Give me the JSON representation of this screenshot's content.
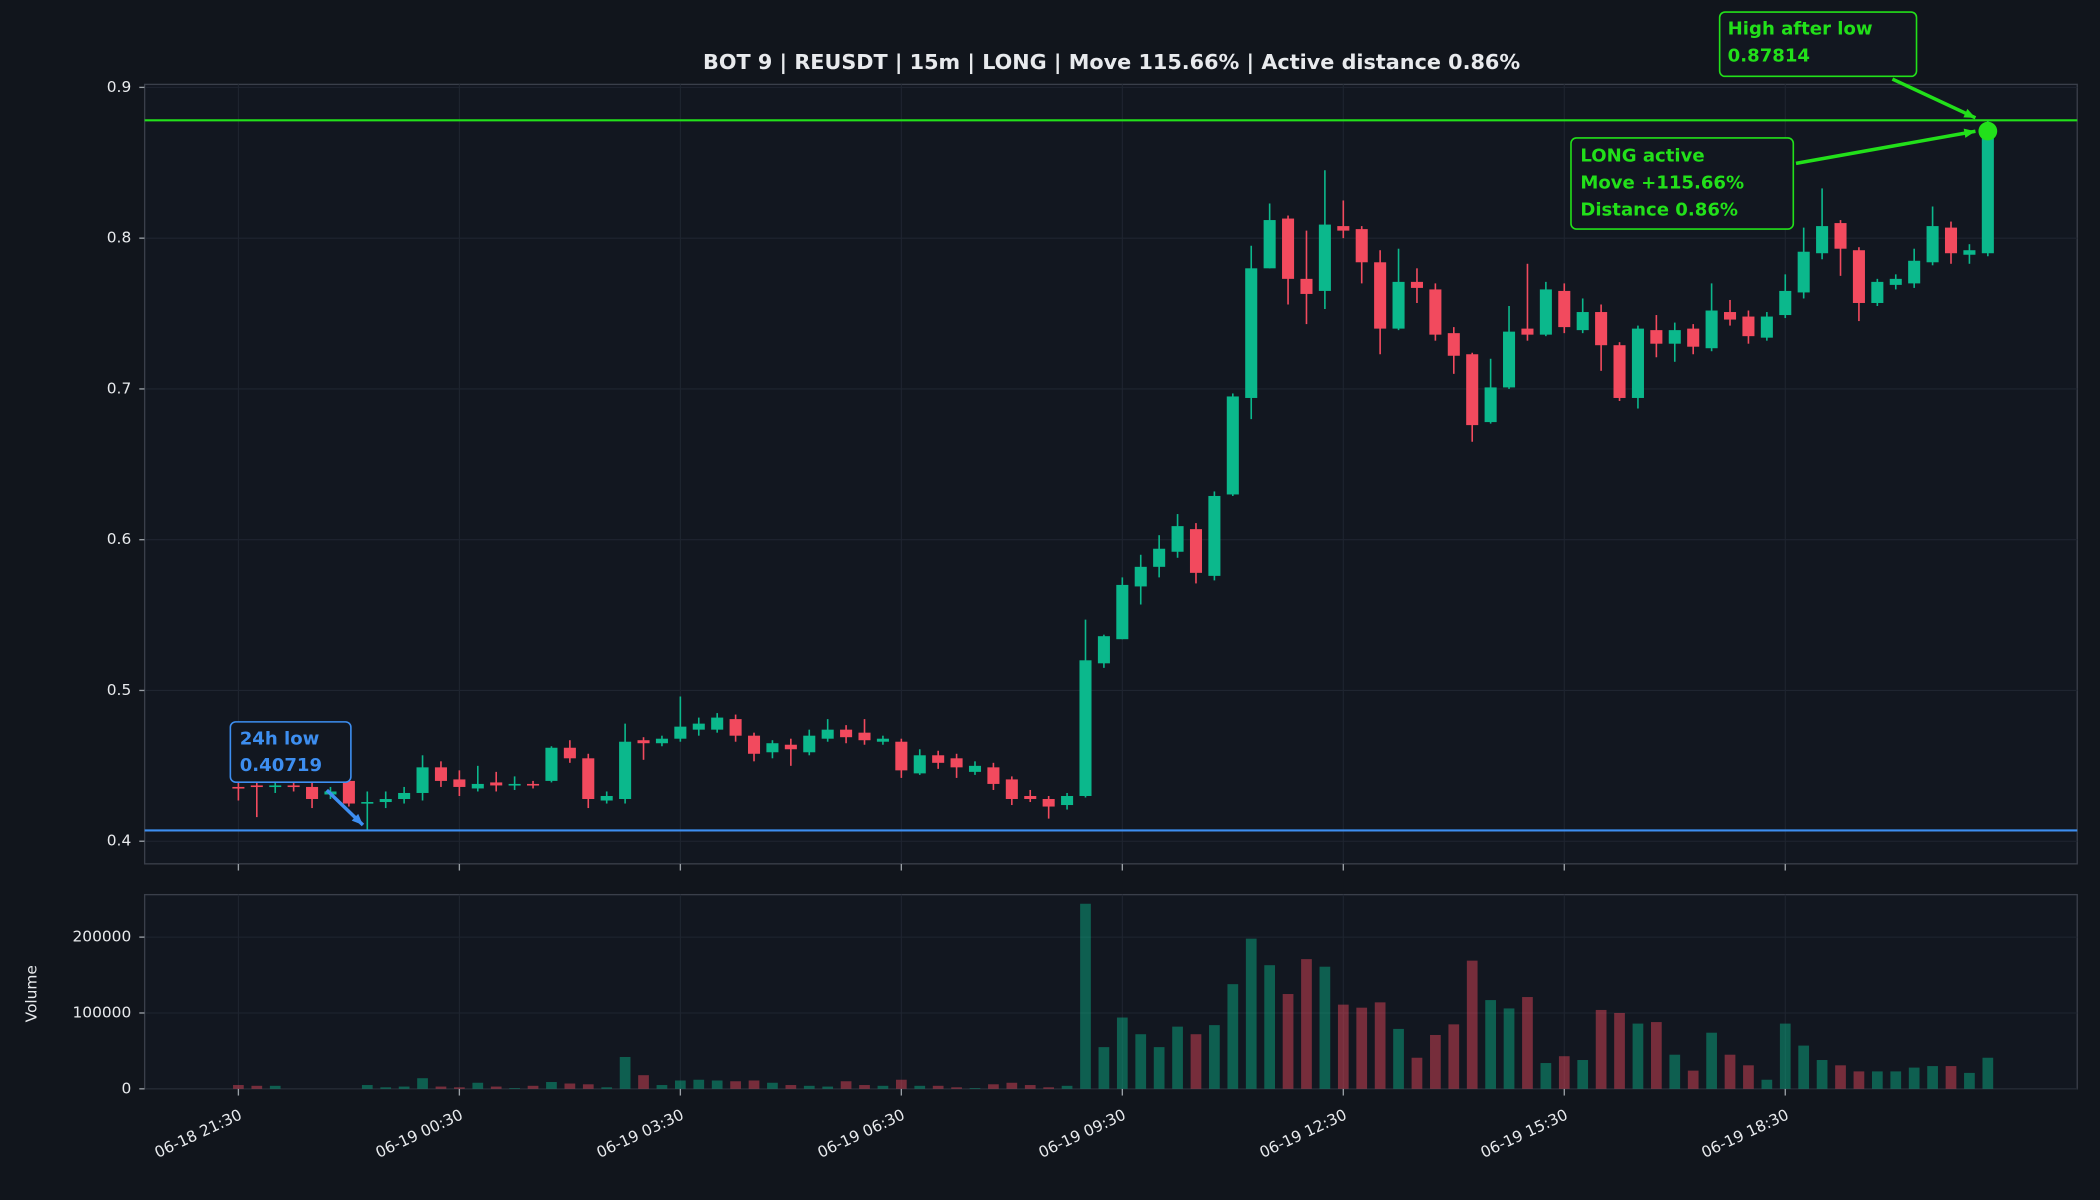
{
  "chart_data": {
    "type": "candlestick",
    "title": "BOT 9 | REUSDT | 15m | LONG | Move 115.66% | Active distance 0.86%",
    "x": [
      "06-18 21:30",
      "06-18 21:45",
      "06-18 22:00",
      "06-18 22:15",
      "06-18 22:30",
      "06-18 22:45",
      "06-18 23:00",
      "06-18 23:15",
      "06-18 23:30",
      "06-18 23:45",
      "06-19 00:00",
      "06-19 00:15",
      "06-19 00:30",
      "06-19 00:45",
      "06-19 01:00",
      "06-19 01:15",
      "06-19 01:30",
      "06-19 01:45",
      "06-19 02:00",
      "06-19 02:15",
      "06-19 02:30",
      "06-19 02:45",
      "06-19 03:00",
      "06-19 03:15",
      "06-19 03:30",
      "06-19 03:45",
      "06-19 04:00",
      "06-19 04:15",
      "06-19 04:30",
      "06-19 04:45",
      "06-19 05:00",
      "06-19 05:15",
      "06-19 05:30",
      "06-19 05:45",
      "06-19 06:00",
      "06-19 06:15",
      "06-19 06:30",
      "06-19 06:45",
      "06-19 07:00",
      "06-19 07:15",
      "06-19 07:30",
      "06-19 07:45",
      "06-19 08:00",
      "06-19 08:15",
      "06-19 08:30",
      "06-19 08:45",
      "06-19 09:00",
      "06-19 09:15",
      "06-19 09:30",
      "06-19 09:45",
      "06-19 10:00",
      "06-19 10:15",
      "06-19 10:30",
      "06-19 10:45",
      "06-19 11:00",
      "06-19 11:15",
      "06-19 11:30",
      "06-19 11:45",
      "06-19 12:00",
      "06-19 12:15",
      "06-19 12:30",
      "06-19 12:45",
      "06-19 13:00",
      "06-19 13:15",
      "06-19 13:30",
      "06-19 13:45",
      "06-19 14:00",
      "06-19 14:15",
      "06-19 14:30",
      "06-19 14:45",
      "06-19 15:00",
      "06-19 15:15",
      "06-19 15:30",
      "06-19 15:45",
      "06-19 16:00",
      "06-19 16:15",
      "06-19 16:30",
      "06-19 16:45",
      "06-19 17:00",
      "06-19 17:15",
      "06-19 17:30",
      "06-19 17:45",
      "06-19 18:00",
      "06-19 18:15",
      "06-19 18:30",
      "06-19 18:45",
      "06-19 19:00",
      "06-19 19:15",
      "06-19 19:30",
      "06-19 19:45",
      "06-19 20:00",
      "06-19 20:15",
      "06-19 20:30",
      "06-19 20:45",
      "06-19 21:00",
      "06-19 21:15"
    ],
    "open": [
      0.436,
      0.437,
      0.436,
      0.437,
      0.436,
      0.431,
      0.44,
      0.425,
      0.426,
      0.428,
      0.432,
      0.449,
      0.441,
      0.435,
      0.439,
      0.437,
      0.438,
      0.44,
      0.462,
      0.455,
      0.427,
      0.428,
      0.467,
      0.465,
      0.468,
      0.474,
      0.474,
      0.481,
      0.47,
      0.459,
      0.464,
      0.459,
      0.468,
      0.474,
      0.472,
      0.466,
      0.466,
      0.445,
      0.457,
      0.455,
      0.446,
      0.449,
      0.441,
      0.43,
      0.428,
      0.424,
      0.43,
      0.518,
      0.534,
      0.569,
      0.582,
      0.592,
      0.607,
      0.576,
      0.63,
      0.694,
      0.78,
      0.813,
      0.773,
      0.765,
      0.808,
      0.806,
      0.784,
      0.74,
      0.771,
      0.766,
      0.737,
      0.723,
      0.678,
      0.701,
      0.74,
      0.736,
      0.765,
      0.739,
      0.751,
      0.729,
      0.694,
      0.739,
      0.73,
      0.74,
      0.727,
      0.751,
      0.748,
      0.734,
      0.749,
      0.764,
      0.79,
      0.81,
      0.792,
      0.757,
      0.769,
      0.77,
      0.784,
      0.807,
      0.789,
      0.79
    ],
    "high": [
      0.44,
      0.44,
      0.44,
      0.441,
      0.439,
      0.436,
      0.441,
      0.433,
      0.433,
      0.436,
      0.457,
      0.453,
      0.447,
      0.45,
      0.446,
      0.443,
      0.44,
      0.463,
      0.467,
      0.458,
      0.433,
      0.478,
      0.469,
      0.47,
      0.496,
      0.482,
      0.485,
      0.484,
      0.472,
      0.467,
      0.468,
      0.474,
      0.481,
      0.477,
      0.481,
      0.47,
      0.468,
      0.461,
      0.46,
      0.458,
      0.453,
      0.452,
      0.443,
      0.434,
      0.43,
      0.432,
      0.547,
      0.537,
      0.575,
      0.59,
      0.603,
      0.617,
      0.611,
      0.632,
      0.697,
      0.795,
      0.823,
      0.815,
      0.805,
      0.845,
      0.825,
      0.808,
      0.792,
      0.793,
      0.78,
      0.77,
      0.741,
      0.724,
      0.72,
      0.755,
      0.783,
      0.771,
      0.77,
      0.76,
      0.756,
      0.731,
      0.742,
      0.749,
      0.744,
      0.743,
      0.77,
      0.759,
      0.752,
      0.751,
      0.776,
      0.807,
      0.833,
      0.812,
      0.794,
      0.773,
      0.776,
      0.793,
      0.821,
      0.811,
      0.796,
      0.87814
    ],
    "low": [
      0.427,
      0.416,
      0.432,
      0.433,
      0.422,
      0.428,
      0.423,
      0.40719,
      0.422,
      0.425,
      0.427,
      0.436,
      0.43,
      0.433,
      0.433,
      0.434,
      0.435,
      0.439,
      0.452,
      0.422,
      0.425,
      0.425,
      0.454,
      0.463,
      0.466,
      0.47,
      0.472,
      0.466,
      0.453,
      0.455,
      0.45,
      0.457,
      0.466,
      0.465,
      0.464,
      0.464,
      0.442,
      0.444,
      0.448,
      0.442,
      0.444,
      0.434,
      0.424,
      0.426,
      0.415,
      0.421,
      0.429,
      0.515,
      0.534,
      0.557,
      0.575,
      0.588,
      0.571,
      0.573,
      0.629,
      0.68,
      0.78,
      0.756,
      0.743,
      0.753,
      0.8,
      0.77,
      0.723,
      0.739,
      0.757,
      0.732,
      0.71,
      0.665,
      0.677,
      0.7,
      0.732,
      0.735,
      0.737,
      0.737,
      0.712,
      0.692,
      0.687,
      0.721,
      0.718,
      0.723,
      0.725,
      0.742,
      0.73,
      0.732,
      0.747,
      0.76,
      0.786,
      0.775,
      0.745,
      0.755,
      0.766,
      0.767,
      0.782,
      0.783,
      0.783,
      0.788
    ],
    "close": [
      0.435,
      0.436,
      0.437,
      0.436,
      0.428,
      0.433,
      0.425,
      0.426,
      0.428,
      0.432,
      0.449,
      0.44,
      0.436,
      0.438,
      0.437,
      0.438,
      0.437,
      0.462,
      0.455,
      0.428,
      0.43,
      0.466,
      0.465,
      0.468,
      0.476,
      0.478,
      0.482,
      0.47,
      0.458,
      0.465,
      0.461,
      0.47,
      0.474,
      0.469,
      0.467,
      0.468,
      0.447,
      0.457,
      0.452,
      0.449,
      0.45,
      0.438,
      0.428,
      0.428,
      0.423,
      0.43,
      0.52,
      0.536,
      0.57,
      0.582,
      0.594,
      0.609,
      0.578,
      0.629,
      0.695,
      0.78,
      0.812,
      0.773,
      0.763,
      0.809,
      0.805,
      0.784,
      0.74,
      0.771,
      0.767,
      0.736,
      0.722,
      0.676,
      0.701,
      0.738,
      0.736,
      0.766,
      0.741,
      0.751,
      0.729,
      0.694,
      0.74,
      0.73,
      0.739,
      0.728,
      0.752,
      0.746,
      0.735,
      0.748,
      0.765,
      0.791,
      0.808,
      0.793,
      0.757,
      0.771,
      0.773,
      0.785,
      0.808,
      0.79,
      0.792,
      0.871
    ],
    "volume": [
      5000,
      4000,
      4000,
      0,
      0,
      0,
      0,
      5000,
      2000,
      3000,
      14000,
      3000,
      2000,
      8000,
      3000,
      1000,
      4000,
      9000,
      7000,
      6000,
      2000,
      42000,
      18000,
      5000,
      11000,
      12000,
      11000,
      10000,
      11000,
      8000,
      5000,
      4000,
      3000,
      10000,
      5000,
      4000,
      12000,
      4000,
      4000,
      2000,
      1000,
      6000,
      8000,
      5000,
      2000,
      4000,
      244000,
      55000,
      94000,
      72000,
      55000,
      82000,
      72000,
      84000,
      138000,
      198000,
      163000,
      125000,
      171000,
      161000,
      111000,
      107000,
      114000,
      79000,
      41000,
      71000,
      85000,
      169000,
      117000,
      106000,
      121000,
      34000,
      43000,
      38000,
      104000,
      100000,
      86000,
      88000,
      45000,
      24000,
      74000,
      45000,
      31000,
      12000,
      86000,
      57000,
      38000,
      31000,
      23000,
      23000,
      23000,
      28000,
      30000,
      30000,
      21000,
      41000
    ],
    "up_color": "#0bb88c",
    "down_color": "#f24a5e",
    "ylim": [
      0.385,
      0.902
    ],
    "yticks": [
      0.4,
      0.5,
      0.6,
      0.7,
      0.8,
      0.9
    ],
    "xticks": [
      "06-18 21:30",
      "06-19 00:30",
      "06-19 03:30",
      "06-19 06:30",
      "06-19 09:30",
      "06-19 12:30",
      "06-19 15:30",
      "06-19 18:30"
    ],
    "volume_label": "Volume",
    "volume_ylim": [
      0,
      256000
    ],
    "volume_yticks": [
      0,
      100000,
      200000
    ],
    "grid": true,
    "low_line": {
      "label": "24h low",
      "value": 0.40719,
      "color": "#3d8ef0"
    },
    "high_line": {
      "label": "High after low",
      "value": 0.87814,
      "color": "#22e01a"
    },
    "status": {
      "lines": [
        "LONG active",
        "Move +115.66%",
        "Distance 0.86%"
      ],
      "color": "#22e01a"
    }
  }
}
